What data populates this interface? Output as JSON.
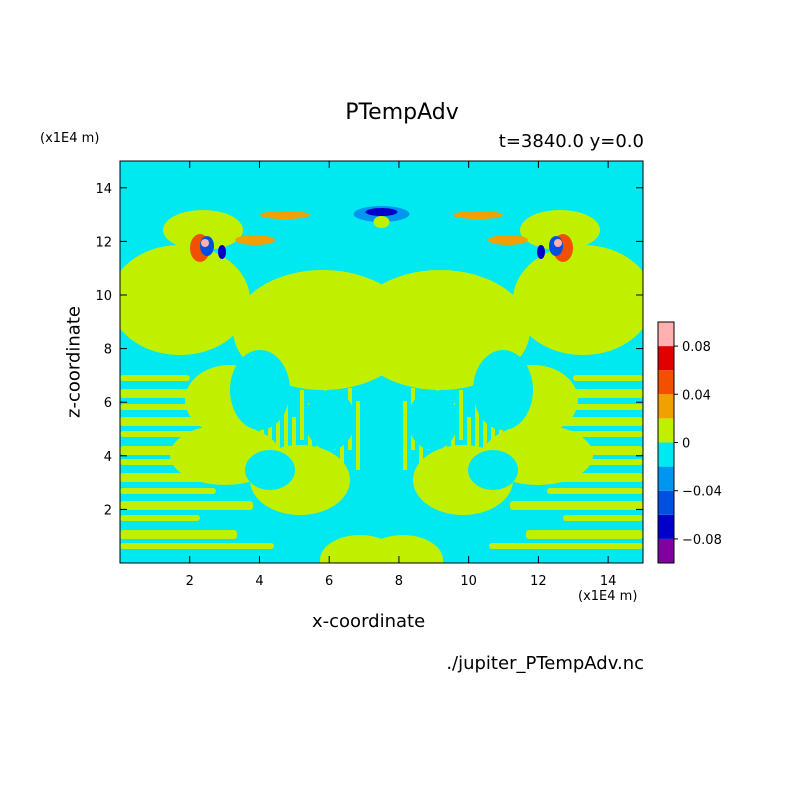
{
  "chart_data": {
    "type": "heatmap",
    "title": "PTempAdv",
    "subtitle": "t=3840.0 y=0.0",
    "xlabel": "x-coordinate",
    "ylabel": "z-coordinate",
    "x_unit": "(x1E4 m)",
    "y_unit": "(x1E4 m)",
    "xlim": [
      0,
      15
    ],
    "ylim": [
      0,
      15
    ],
    "xticks": [
      2,
      4,
      6,
      8,
      10,
      12,
      14
    ],
    "yticks": [
      2,
      4,
      6,
      8,
      10,
      12,
      14
    ],
    "colorbar": {
      "bounds": [
        -0.1,
        -0.08,
        -0.06,
        -0.04,
        -0.02,
        0,
        0.02,
        0.04,
        0.06,
        0.08,
        0.1
      ],
      "colors": [
        "#8000a0",
        "#0000c8",
        "#0050e0",
        "#0096f0",
        "#00e8f0",
        "#c0f000",
        "#f0a000",
        "#f05000",
        "#e00000",
        "#ffb0b0"
      ],
      "tick_values": [
        0.08,
        0.04,
        0,
        -0.04,
        -0.08
      ],
      "tick_labels": [
        "0.08",
        "0.04",
        "0",
        "−0.04",
        "−0.08"
      ]
    },
    "source_file": "./jupiter_PTempAdv.nc"
  }
}
